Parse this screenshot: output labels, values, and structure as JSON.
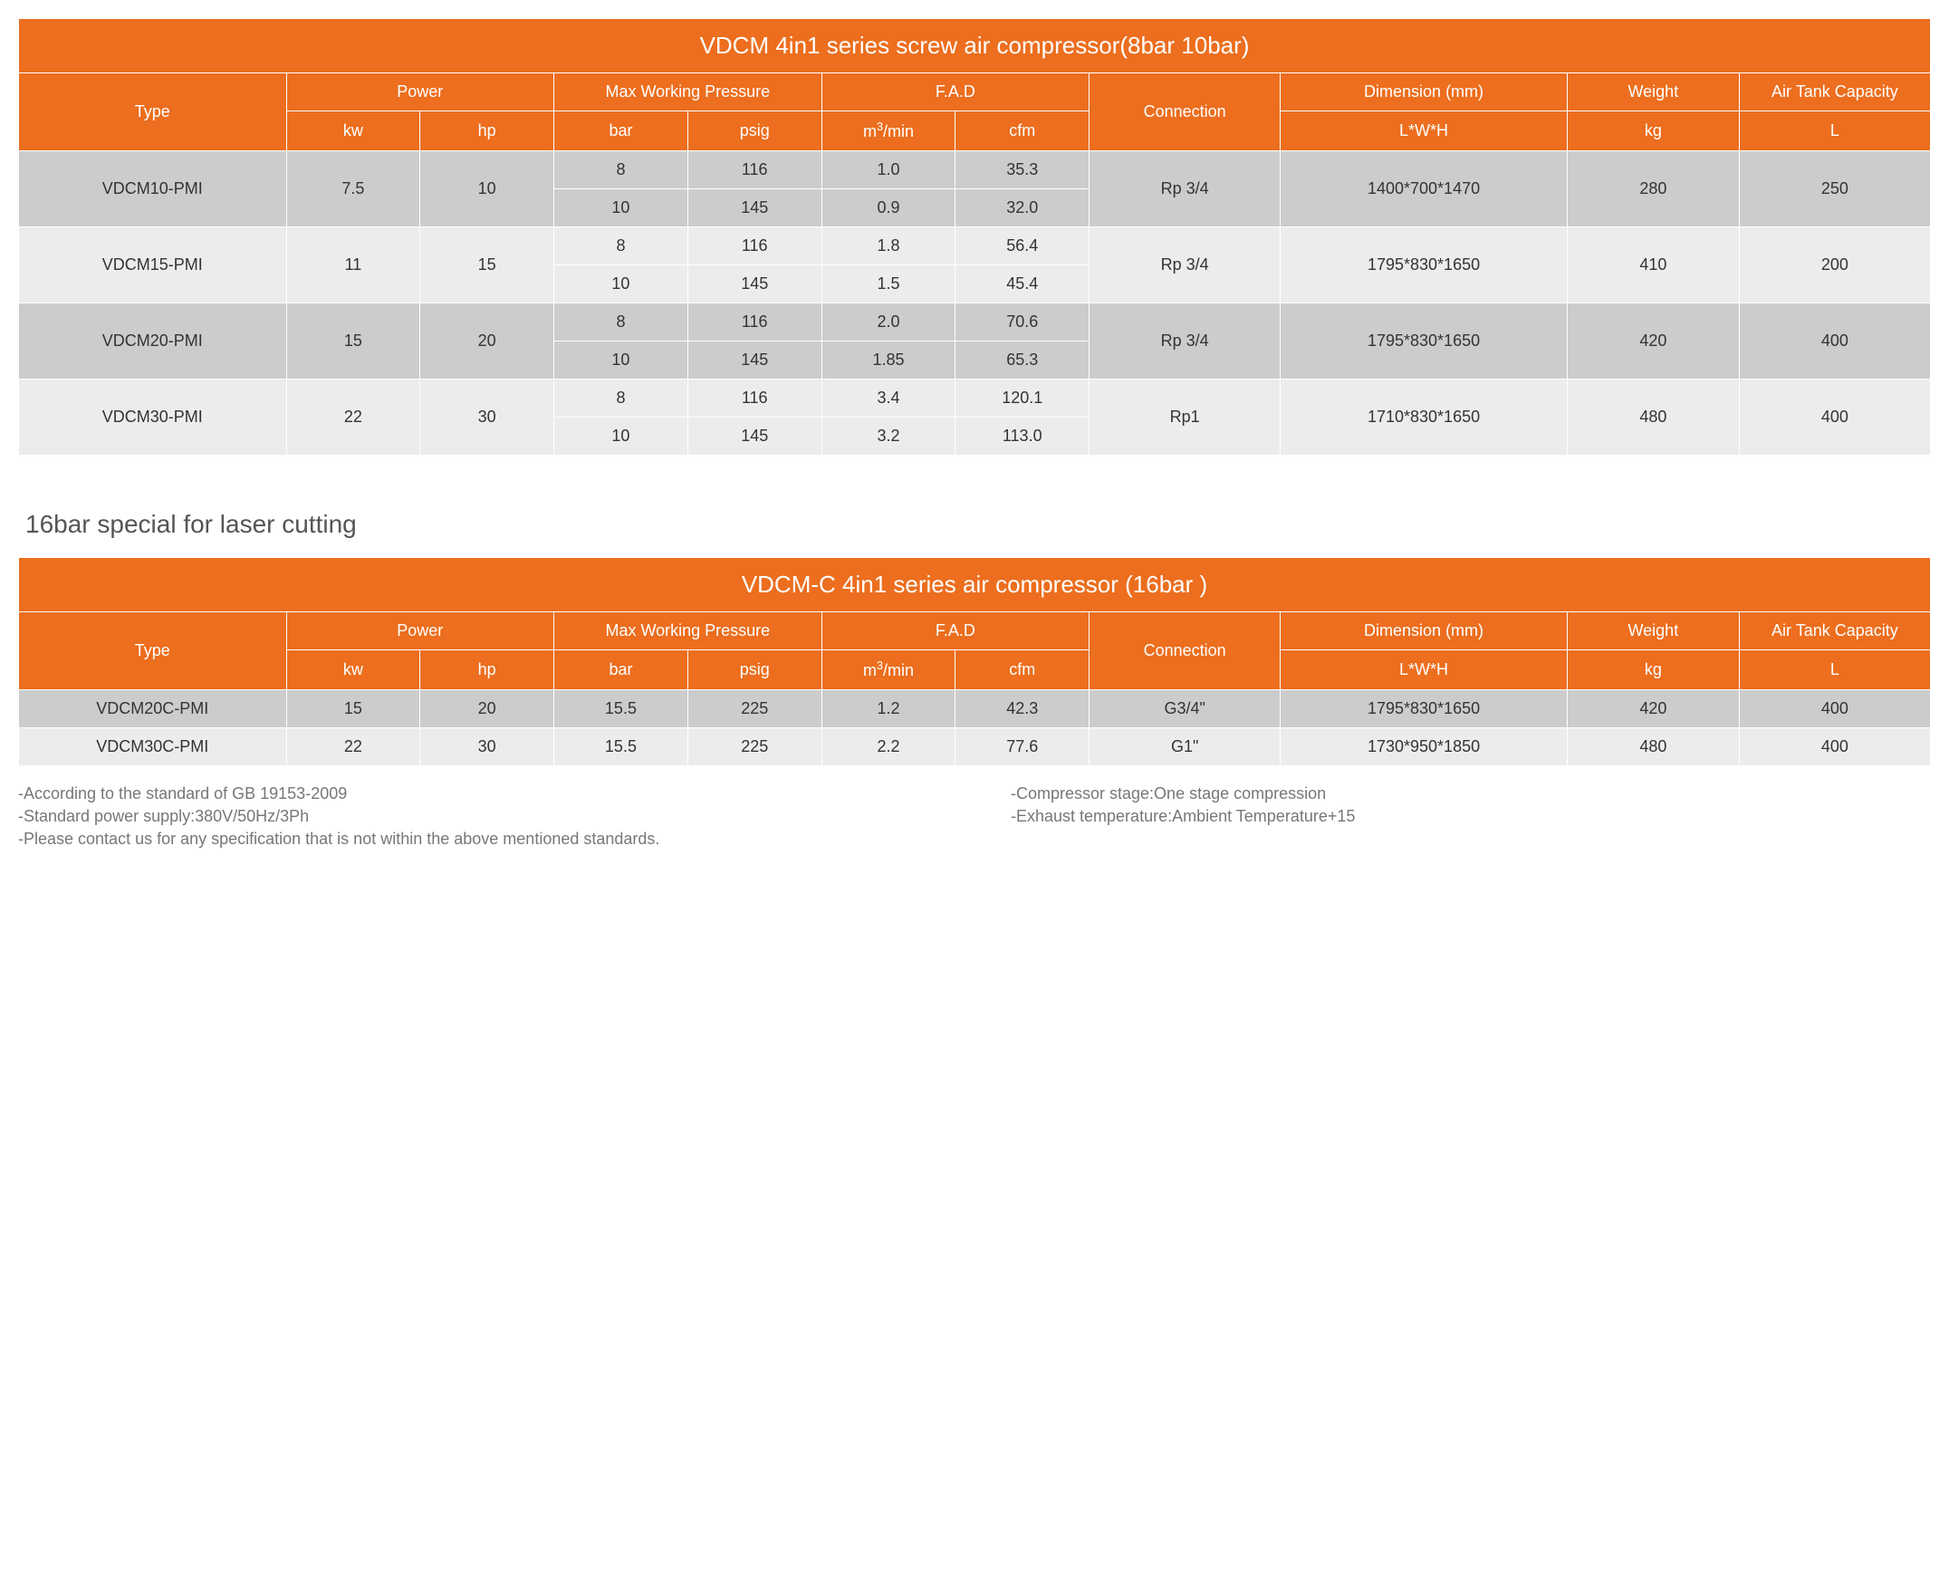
{
  "colors": {
    "header_bg": "#ec6e1e",
    "header_fg": "#ffffff",
    "row_dark": "#cccccc",
    "row_light": "#ececec",
    "border": "#ffffff",
    "text": "#333333",
    "subtitle": "#555555",
    "notes": "#777777"
  },
  "typography": {
    "font_family": "Arial, Helvetica, sans-serif",
    "title_fontsize": 26,
    "cell_fontsize": 18,
    "subtitle_fontsize": 28,
    "notes_fontsize": 18
  },
  "table1": {
    "title": "VDCM 4in1 series screw air compressor(8bar 10bar)",
    "headers": {
      "type": "Type",
      "power": "Power",
      "maxwp": "Max Working Pressure",
      "fad": "F.A.D",
      "connection": "Connection",
      "dimension": "Dimension (mm)",
      "weight": "Weight",
      "airtank": "Air Tank Capacity",
      "kw": "kw",
      "hp": "hp",
      "bar": "bar",
      "psig": "psig",
      "m3min": "m³/min",
      "cfm": "cfm",
      "lwh": "L*W*H",
      "kg": "kg",
      "L": "L"
    },
    "rows": [
      {
        "type": "VDCM10-PMI",
        "kw": "7.5",
        "hp": "10",
        "variants": [
          {
            "bar": "8",
            "psig": "116",
            "m3min": "1.0",
            "cfm": "35.3"
          },
          {
            "bar": "10",
            "psig": "145",
            "m3min": "0.9",
            "cfm": "32.0"
          }
        ],
        "connection": "Rp 3/4",
        "dimension": "1400*700*1470",
        "weight": "280",
        "tank": "250",
        "shade": "dark"
      },
      {
        "type": "VDCM15-PMI",
        "kw": "11",
        "hp": "15",
        "variants": [
          {
            "bar": "8",
            "psig": "116",
            "m3min": "1.8",
            "cfm": "56.4"
          },
          {
            "bar": "10",
            "psig": "145",
            "m3min": "1.5",
            "cfm": "45.4"
          }
        ],
        "connection": "Rp 3/4",
        "dimension": "1795*830*1650",
        "weight": "410",
        "tank": "200",
        "shade": "light"
      },
      {
        "type": "VDCM20-PMI",
        "kw": "15",
        "hp": "20",
        "variants": [
          {
            "bar": "8",
            "psig": "116",
            "m3min": "2.0",
            "cfm": "70.6"
          },
          {
            "bar": "10",
            "psig": "145",
            "m3min": "1.85",
            "cfm": "65.3"
          }
        ],
        "connection": "Rp 3/4",
        "dimension": "1795*830*1650",
        "weight": "420",
        "tank": "400",
        "shade": "dark"
      },
      {
        "type": "VDCM30-PMI",
        "kw": "22",
        "hp": "30",
        "variants": [
          {
            "bar": "8",
            "psig": "116",
            "m3min": "3.4",
            "cfm": "120.1"
          },
          {
            "bar": "10",
            "psig": "145",
            "m3min": "3.2",
            "cfm": "113.0"
          }
        ],
        "connection": "Rp1",
        "dimension": "1710*830*1650",
        "weight": "480",
        "tank": "400",
        "shade": "light"
      }
    ]
  },
  "subtitle": "16bar special for laser cutting",
  "table2": {
    "title": "VDCM-C 4in1 series air compressor (16bar )",
    "headers": {
      "type": "Type",
      "power": "Power",
      "maxwp": "Max Working Pressure",
      "fad": "F.A.D",
      "connection": "Connection",
      "dimension": "Dimension (mm)",
      "weight": "Weight",
      "airtank": "Air Tank Capacity",
      "kw": "kw",
      "hp": "hp",
      "bar": "bar",
      "psig": "psig",
      "m3min": "m³/min",
      "cfm": "cfm",
      "lwh": "L*W*H",
      "kg": "kg",
      "L": "L"
    },
    "rows": [
      {
        "type": "VDCM20C-PMI",
        "kw": "15",
        "hp": "20",
        "bar": "15.5",
        "psig": "225",
        "m3min": "1.2",
        "cfm": "42.3",
        "connection": "G3/4\"",
        "dimension": "1795*830*1650",
        "weight": "420",
        "tank": "400",
        "shade": "dark"
      },
      {
        "type": "VDCM30C-PMI",
        "kw": "22",
        "hp": "30",
        "bar": "15.5",
        "psig": "225",
        "m3min": "2.2",
        "cfm": "77.6",
        "connection": "G1\"",
        "dimension": "1730*950*1850",
        "weight": "480",
        "tank": "400",
        "shade": "light"
      }
    ]
  },
  "notes": {
    "left": [
      "-According to the standard of GB 19153-2009",
      "-Standard power supply:380V/50Hz/3Ph"
    ],
    "right": [
      "-Compressor stage:One stage compression",
      "-Exhaust temperature:Ambient Temperature+15"
    ],
    "full": "-Please contact us for any specification that is not within the above mentioned standards."
  }
}
